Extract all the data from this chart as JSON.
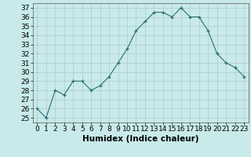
{
  "x": [
    0,
    1,
    2,
    3,
    4,
    5,
    6,
    7,
    8,
    9,
    10,
    11,
    12,
    13,
    14,
    15,
    16,
    17,
    18,
    19,
    20,
    21,
    22,
    23
  ],
  "y": [
    26,
    25,
    28,
    27.5,
    29,
    29,
    28,
    28.5,
    29.5,
    31,
    32.5,
    34.5,
    35.5,
    36.5,
    36.5,
    36,
    37,
    36,
    36,
    34.5,
    32,
    31,
    30.5,
    29.5
  ],
  "xlabel": "Humidex (Indice chaleur)",
  "ylim": [
    24.5,
    37.5
  ],
  "xlim": [
    -0.5,
    23.5
  ],
  "yticks": [
    25,
    26,
    27,
    28,
    29,
    30,
    31,
    32,
    33,
    34,
    35,
    36,
    37
  ],
  "xticks": [
    0,
    1,
    2,
    3,
    4,
    5,
    6,
    7,
    8,
    9,
    10,
    11,
    12,
    13,
    14,
    15,
    16,
    17,
    18,
    19,
    20,
    21,
    22,
    23
  ],
  "line_color": "#2d6e6e",
  "bg_color": "#c8eaea",
  "grid_color": "#b0c8c8",
  "tick_fontsize": 6.5,
  "label_fontsize": 7.5
}
